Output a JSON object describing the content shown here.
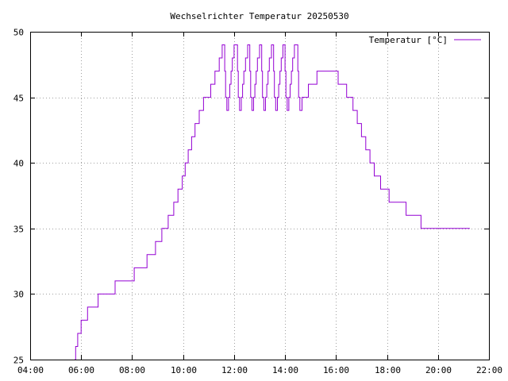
{
  "chart_data": {
    "type": "line",
    "title": "Wechselrichter Temperatur 20250530",
    "xlabel": "",
    "ylabel": "",
    "x_ticks": [
      "04:00",
      "06:00",
      "08:00",
      "10:00",
      "12:00",
      "14:00",
      "16:00",
      "18:00",
      "20:00",
      "22:00"
    ],
    "y_ticks": [
      25,
      30,
      35,
      40,
      45,
      50
    ],
    "xlim": [
      "04:00",
      "22:00"
    ],
    "ylim": [
      25,
      50
    ],
    "grid": true,
    "legend_position": "top-right",
    "series": [
      {
        "name": "Temperatur [°C]",
        "color": "#9400d3",
        "step": true,
        "points": [
          [
            "05:45",
            25
          ],
          [
            "05:47",
            26
          ],
          [
            "05:52",
            27
          ],
          [
            "06:00",
            28
          ],
          [
            "06:15",
            29
          ],
          [
            "06:40",
            30
          ],
          [
            "07:20",
            31
          ],
          [
            "08:05",
            32
          ],
          [
            "08:35",
            33
          ],
          [
            "08:55",
            34
          ],
          [
            "09:10",
            35
          ],
          [
            "09:25",
            36
          ],
          [
            "09:38",
            37
          ],
          [
            "09:48",
            38
          ],
          [
            "09:58",
            39
          ],
          [
            "10:05",
            40
          ],
          [
            "10:12",
            41
          ],
          [
            "10:20",
            42
          ],
          [
            "10:28",
            43
          ],
          [
            "10:38",
            44
          ],
          [
            "10:48",
            45
          ],
          [
            "11:05",
            46
          ],
          [
            "11:15",
            47
          ],
          [
            "11:25",
            48
          ],
          [
            "11:32",
            49
          ],
          [
            "11:38",
            47
          ],
          [
            "11:40",
            45
          ],
          [
            "11:43",
            44
          ],
          [
            "11:47",
            45
          ],
          [
            "11:50",
            46
          ],
          [
            "11:53",
            47
          ],
          [
            "11:56",
            48
          ],
          [
            "12:00",
            49
          ],
          [
            "12:08",
            47
          ],
          [
            "12:10",
            45
          ],
          [
            "12:13",
            44
          ],
          [
            "12:17",
            45
          ],
          [
            "12:20",
            46
          ],
          [
            "12:23",
            47
          ],
          [
            "12:27",
            48
          ],
          [
            "12:32",
            49
          ],
          [
            "12:37",
            47
          ],
          [
            "12:39",
            45
          ],
          [
            "12:42",
            44
          ],
          [
            "12:46",
            45
          ],
          [
            "12:49",
            46
          ],
          [
            "12:52",
            47
          ],
          [
            "12:55",
            48
          ],
          [
            "13:00",
            49
          ],
          [
            "13:05",
            47
          ],
          [
            "13:07",
            45
          ],
          [
            "13:10",
            44
          ],
          [
            "13:14",
            45
          ],
          [
            "13:17",
            46
          ],
          [
            "13:20",
            47
          ],
          [
            "13:23",
            48
          ],
          [
            "13:28",
            49
          ],
          [
            "13:33",
            47
          ],
          [
            "13:35",
            45
          ],
          [
            "13:38",
            44
          ],
          [
            "13:42",
            45
          ],
          [
            "13:45",
            46
          ],
          [
            "13:48",
            47
          ],
          [
            "13:51",
            48
          ],
          [
            "13:55",
            49
          ],
          [
            "14:00",
            47
          ],
          [
            "14:02",
            45
          ],
          [
            "14:05",
            44
          ],
          [
            "14:09",
            45
          ],
          [
            "14:12",
            46
          ],
          [
            "14:15",
            47
          ],
          [
            "14:18",
            48
          ],
          [
            "14:22",
            49
          ],
          [
            "14:30",
            47
          ],
          [
            "14:32",
            45
          ],
          [
            "14:35",
            44
          ],
          [
            "14:40",
            45
          ],
          [
            "14:55",
            46
          ],
          [
            "15:15",
            47
          ],
          [
            "16:05",
            46
          ],
          [
            "16:25",
            45
          ],
          [
            "16:40",
            44
          ],
          [
            "16:50",
            43
          ],
          [
            "17:00",
            42
          ],
          [
            "17:10",
            41
          ],
          [
            "17:20",
            40
          ],
          [
            "17:30",
            39
          ],
          [
            "17:45",
            38
          ],
          [
            "18:05",
            37
          ],
          [
            "18:45",
            36
          ],
          [
            "19:20",
            35
          ],
          [
            "20:00",
            35
          ],
          [
            "21:15",
            35
          ]
        ]
      }
    ]
  }
}
